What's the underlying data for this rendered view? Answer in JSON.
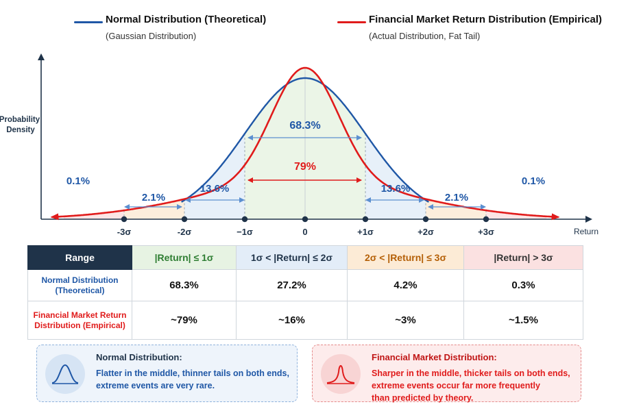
{
  "colors": {
    "normal": "#1f57a6",
    "market": "#e01b1b",
    "header_dark": "#1f3349",
    "green": "#2e7d32",
    "orange": "#b45f06",
    "zone_green": "#e7f3e3",
    "zone_blue": "#e3edf8",
    "zone_orange": "#fcebd6",
    "zone_red": "#fbe1e1"
  },
  "legend": {
    "normal": {
      "title": "Normal Distribution (Theoretical)",
      "subtitle": "(Gaussian Distribution)"
    },
    "market": {
      "title": "Financial Market Return Distribution (Empirical)",
      "subtitle": "(Actual Distribution, Fat Tail)"
    }
  },
  "chart_data": {
    "type": "line",
    "title": "",
    "xlabel": "Return",
    "ylabel": "Probability Density",
    "xlim": [
      -4.5,
      4.5
    ],
    "x_ticks": [
      {
        "value": -3,
        "label": "-3σ"
      },
      {
        "value": -2,
        "label": "-2σ"
      },
      {
        "value": -1,
        "label": "−1σ"
      },
      {
        "value": 0,
        "label": "0"
      },
      {
        "value": 1,
        "label": "+1σ"
      },
      {
        "value": 2,
        "label": "+2σ"
      },
      {
        "value": 3,
        "label": "+3σ"
      }
    ],
    "series": [
      {
        "name": "Normal Distribution (Theoretical)",
        "kind": "normal",
        "peak": 0.399
      },
      {
        "name": "Financial Market Return Distribution (Empirical)",
        "kind": "fat-tail",
        "peak": 0.5
      }
    ],
    "annotations": {
      "normal_1sigma": "68.3%",
      "market_1sigma": "79%",
      "band_1_2": "13.6%",
      "band_2_3": "2.1%",
      "tail": "0.1%"
    },
    "grid": false,
    "legend_position": "top"
  },
  "table": {
    "headers": [
      "Range",
      "|Return| ≤ 1σ",
      "1σ < |Return| ≤ 2σ",
      "2σ < |Return| ≤ 3σ",
      "|Return| > 3σ"
    ],
    "rows": [
      {
        "label": "Normal Distribution (Theoretical)",
        "values": [
          "68.3%",
          "27.2%",
          "4.2%",
          "0.3%"
        ]
      },
      {
        "label": "Financial Market Return Distribution (Empirical)",
        "values": [
          "~79%",
          "~16%",
          "~3%",
          "~1.5%"
        ]
      }
    ]
  },
  "cards": {
    "normal": {
      "title": "Normal Distribution:",
      "lines": [
        "Flatter in the middle, thinner tails on both ends,",
        "extreme events are very rare."
      ],
      "icon": "bell-curve-icon"
    },
    "market": {
      "title": "Financial Market Distribution:",
      "lines": [
        "Sharper in the middle, thicker tails on both ends,",
        "extreme events occur far more frequently",
        "than predicted by theory."
      ],
      "icon": "peaked-bell-curve-icon"
    }
  }
}
